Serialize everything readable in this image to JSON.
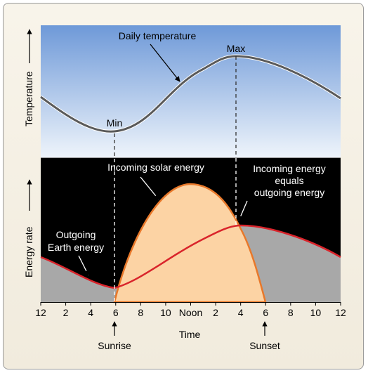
{
  "top_panel": {
    "y_label": "Temperature",
    "curve_label": "Daily temperature",
    "min_label": "Min",
    "max_label": "Max"
  },
  "bottom_panel": {
    "y_label": "Energy rate",
    "solar_label": "Incoming solar energy",
    "balance_label_lines": [
      "Incoming energy",
      "equals",
      "outgoing energy"
    ],
    "earth_label_lines": [
      "Outgoing",
      "Earth energy"
    ]
  },
  "x_axis": {
    "title": "Time",
    "ticks": [
      "12",
      "2",
      "4",
      "6",
      "8",
      "10",
      "Noon",
      "2",
      "4",
      "6",
      "8",
      "10",
      "12"
    ],
    "sunrise_label": "Sunrise",
    "sunset_label": "Sunset"
  },
  "colors": {
    "sky_top": "#6e99d8",
    "sky_bottom": "#eef4fb",
    "night_panel": "#000000",
    "solar_fill": "#fcd3a4",
    "solar_stroke": "#e8782a",
    "earth_stroke": "#d9242b",
    "gray_fill": "#a8a8a8",
    "temp_curve": "#5a5a5a"
  }
}
